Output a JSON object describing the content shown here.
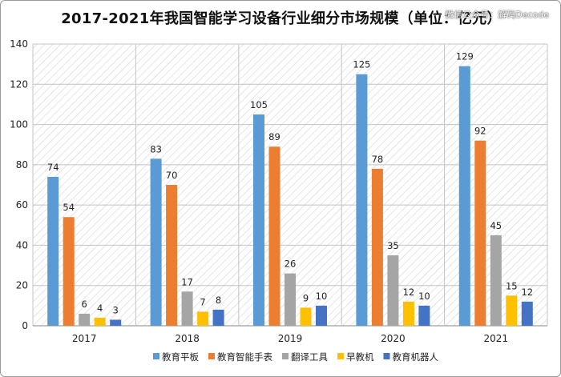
{
  "watermark": "微信公众号：解码Decode",
  "chart_data": {
    "type": "bar",
    "title": "2017-2021年我国智能学习设备行业细分市场规模（单位：亿元）",
    "categories": [
      "2017",
      "2018",
      "2019",
      "2020",
      "2021"
    ],
    "series": [
      {
        "name": "教育平板",
        "color": "#5b9bd5",
        "values": [
          74,
          83,
          105,
          125,
          129
        ]
      },
      {
        "name": "教育智能手表",
        "color": "#ed7d31",
        "values": [
          54,
          70,
          89,
          78,
          92
        ]
      },
      {
        "name": "翻译工具",
        "color": "#a5a5a5",
        "values": [
          6,
          17,
          26,
          35,
          45
        ]
      },
      {
        "name": "早教机",
        "color": "#ffc000",
        "values": [
          4,
          7,
          9,
          12,
          15
        ]
      },
      {
        "name": "教育机器人",
        "color": "#4472c4",
        "values": [
          3,
          8,
          10,
          10,
          12
        ]
      }
    ],
    "ylim": [
      0,
      140
    ],
    "yticks": [
      0,
      20,
      40,
      60,
      80,
      100,
      120,
      140
    ],
    "xlabel": "",
    "ylabel": "",
    "legend": "bottom"
  }
}
